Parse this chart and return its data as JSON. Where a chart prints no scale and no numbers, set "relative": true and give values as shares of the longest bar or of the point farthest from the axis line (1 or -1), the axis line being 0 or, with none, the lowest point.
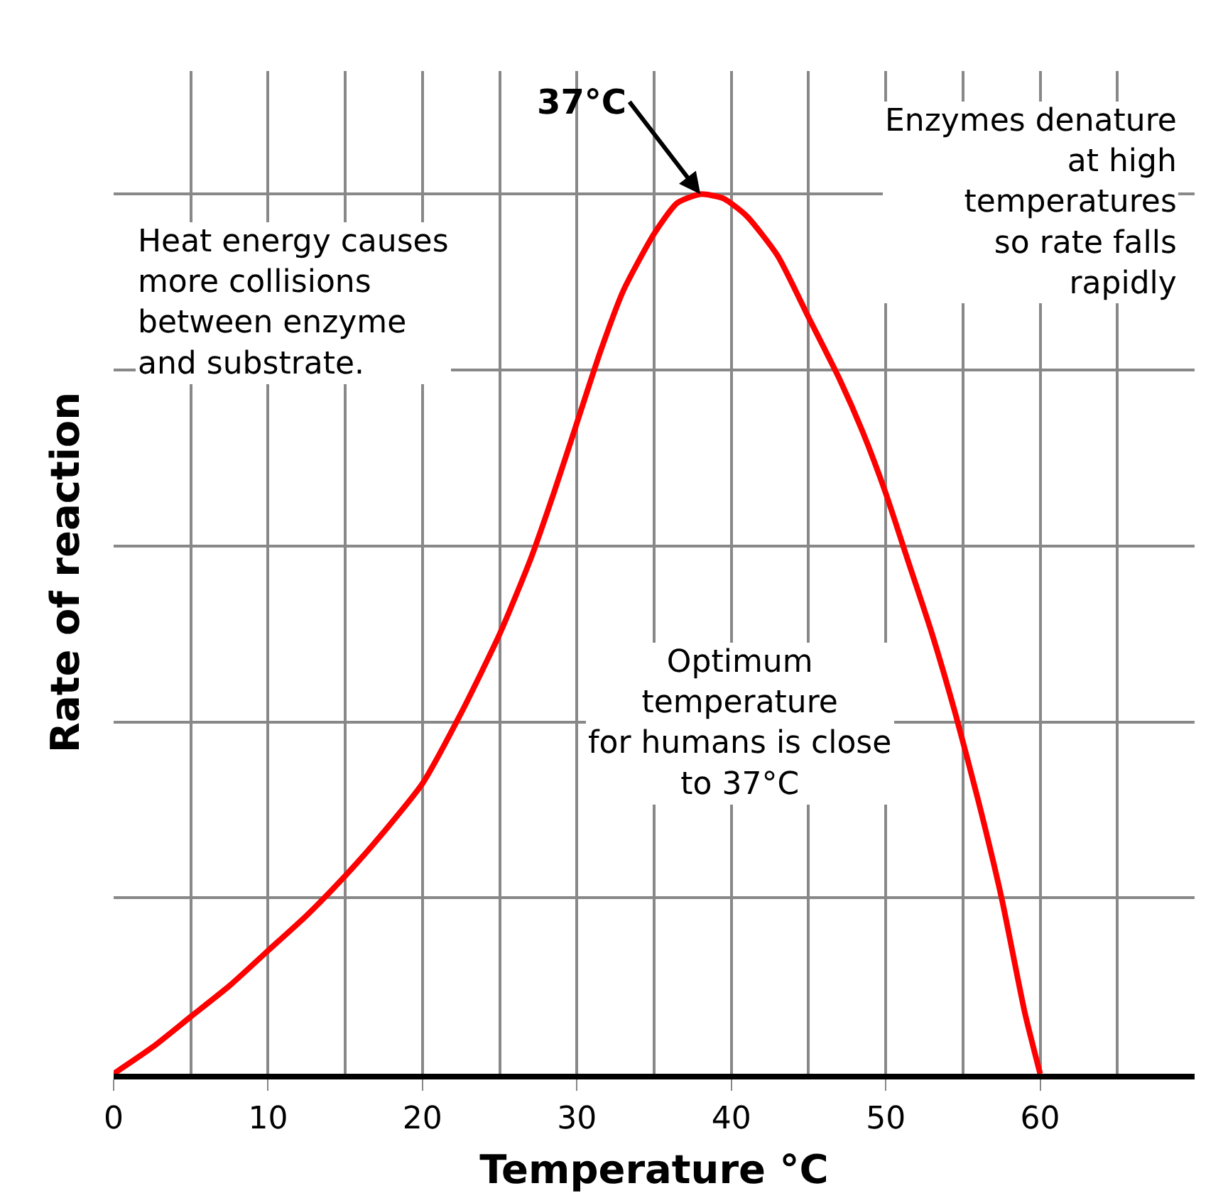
{
  "chart_data": {
    "type": "line",
    "relative": true,
    "xlabel": "Temperature °C",
    "ylabel": "Rate of reaction",
    "x": [
      0,
      2.5,
      5,
      7.5,
      10,
      12.5,
      15,
      17.5,
      20,
      22.5,
      25,
      27,
      28.5,
      30,
      31.5,
      33,
      35,
      36.5,
      38,
      39.5,
      41,
      43,
      45,
      47,
      48.5,
      50,
      51.5,
      53,
      54.5,
      56,
      57.5,
      59,
      60
    ],
    "series": [
      {
        "color": "#ff0000",
        "values": [
          0,
          0.03,
          0.065,
          0.1,
          0.14,
          0.18,
          0.225,
          0.275,
          0.33,
          0.41,
          0.5,
          0.585,
          0.66,
          0.74,
          0.82,
          0.89,
          0.955,
          0.99,
          1.0,
          0.995,
          0.975,
          0.93,
          0.86,
          0.79,
          0.73,
          0.66,
          0.58,
          0.5,
          0.41,
          0.31,
          0.2,
          0.07,
          0
        ]
      }
    ],
    "xlim": [
      0,
      70
    ],
    "xticks": [
      0,
      {
        "value": 5,
        "label": null
      },
      10,
      {
        "value": 15,
        "label": null
      },
      20,
      {
        "value": 25,
        "label": null
      },
      30,
      {
        "value": 35,
        "label": null
      },
      40,
      {
        "value": 45,
        "label": null
      },
      50,
      {
        "value": 55,
        "label": null
      },
      60,
      {
        "value": 65,
        "label": null
      }
    ],
    "grid": true,
    "marker": "none",
    "line_style": "solid",
    "annotations": [
      {
        "text": "37°C",
        "x": 38,
        "y": 1.0
      },
      "Heat energy causes\nmore collisions\nbetween enzyme\nand substrate.",
      "Enzymes denature\nat high\ntemperatures\nso rate falls\nrapidly",
      "Optimum\ntemperature\nfor humans is close\nto 37°C"
    ]
  }
}
